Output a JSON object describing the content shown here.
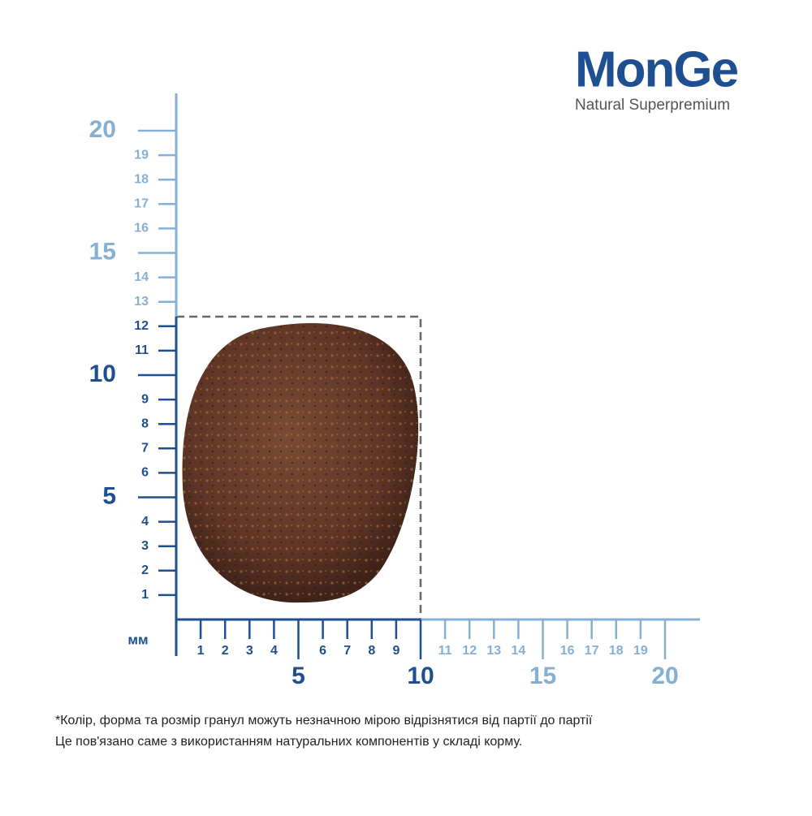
{
  "logo": {
    "brand": "MonGe",
    "tagline": "Natural Superpremium"
  },
  "ruler": {
    "unit": "мм",
    "y_minor": [
      1,
      2,
      3,
      4,
      6,
      7,
      8,
      9,
      11,
      12,
      13,
      14,
      16,
      17,
      18,
      19
    ],
    "y_major": [
      5,
      10,
      15,
      20
    ],
    "x_minor": [
      1,
      2,
      3,
      4,
      6,
      7,
      8,
      9,
      11,
      12,
      13,
      14,
      16,
      17,
      18,
      19
    ],
    "x_major": [
      5,
      10,
      15,
      20
    ]
  },
  "footnote": [
    "*Колір, форма та розмір гранул можуть незначною мірою відрізнятися від партії до партії",
    "Це пов'язано саме з використанням натуральних компонентів у складі корму."
  ]
}
